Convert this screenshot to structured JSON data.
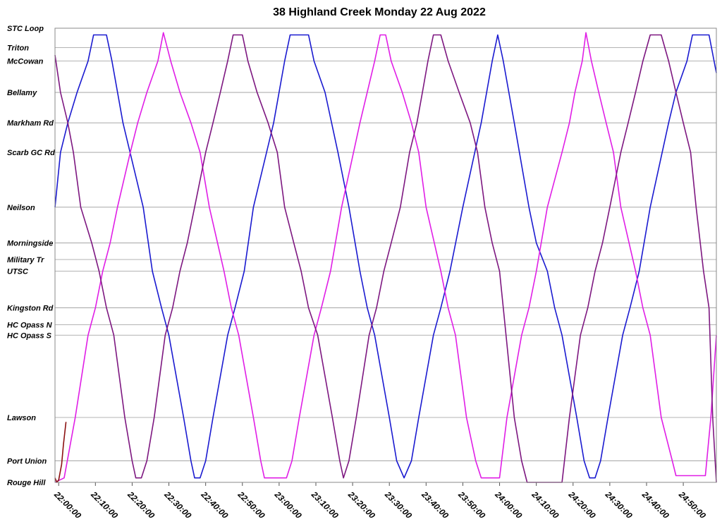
{
  "chart_data": {
    "type": "line",
    "title": "38 Highland Creek Monday 22 Aug 2022",
    "xlabel": "",
    "ylabel": "",
    "x_ticks": [
      "22:00:00",
      "22:10:00",
      "22:20:00",
      "22:30:00",
      "22:40:00",
      "22:50:00",
      "23:00:00",
      "23:10:00",
      "23:20:00",
      "23:30:00",
      "23:40:00",
      "23:50:00",
      "24:00:00",
      "24:10:00",
      "24:20:00",
      "24:30:00",
      "24:40:00",
      "24:50:00"
    ],
    "xlim_minutes": [
      -1,
      179
    ],
    "stops": [
      {
        "name": "STC Loop",
        "pos": 0
      },
      {
        "name": "Triton",
        "pos": 0.87
      },
      {
        "name": "McCowan",
        "pos": 1.47
      },
      {
        "name": "Bellamy",
        "pos": 2.87
      },
      {
        "name": "Markham Rd",
        "pos": 4.23
      },
      {
        "name": "Scarb GC Rd",
        "pos": 5.55
      },
      {
        "name": "Neilson",
        "pos": 8.0
      },
      {
        "name": "Morningside",
        "pos": 9.6
      },
      {
        "name": "Military Tr",
        "pos": 10.34
      },
      {
        "name": "UTSC",
        "pos": 10.86
      },
      {
        "name": "Kingston Rd",
        "pos": 12.5
      },
      {
        "name": "HC Opass N",
        "pos": 13.25
      },
      {
        "name": "HC Opass S",
        "pos": 13.72
      },
      {
        "name": "Lawson",
        "pos": 17.4
      },
      {
        "name": "Port Union",
        "pos": 19.34
      },
      {
        "name": "Rouge Hill",
        "pos": 20.3
      }
    ],
    "ylim": [
      0,
      20.3
    ],
    "grid": true,
    "series": [
      {
        "color": "#1a1ad0",
        "points": [
          [
            -1,
            8
          ],
          [
            0.5,
            5.55
          ],
          [
            2.5,
            4.23
          ],
          [
            5,
            2.87
          ],
          [
            8,
            1.47
          ],
          [
            9.5,
            0.3
          ],
          [
            13,
            0.3
          ],
          [
            14.5,
            1.47
          ],
          [
            17.5,
            4.23
          ],
          [
            23,
            8
          ],
          [
            25.5,
            10.86
          ],
          [
            28,
            12.5
          ],
          [
            30,
            13.72
          ],
          [
            34,
            17.4
          ],
          [
            36,
            19.34
          ],
          [
            37,
            20.1
          ],
          [
            38.5,
            20.1
          ],
          [
            40,
            19.34
          ],
          [
            42,
            17.4
          ],
          [
            46,
            13.72
          ],
          [
            48,
            12.5
          ],
          [
            50.5,
            10.86
          ],
          [
            53,
            8
          ],
          [
            58.5,
            4.23
          ],
          [
            61.5,
            1.47
          ],
          [
            63,
            0.3
          ],
          [
            68,
            0.3
          ],
          [
            69.5,
            1.47
          ],
          [
            72.5,
            2.87
          ],
          [
            76,
            5.55
          ],
          [
            79,
            8
          ],
          [
            82,
            10.86
          ],
          [
            84,
            12.5
          ],
          [
            86,
            13.72
          ],
          [
            90,
            17.4
          ],
          [
            92,
            19.34
          ],
          [
            94,
            20.1
          ],
          [
            96,
            19.34
          ],
          [
            98,
            17.4
          ],
          [
            102,
            13.72
          ],
          [
            104,
            12.5
          ],
          [
            106.5,
            10.86
          ],
          [
            110,
            8
          ],
          [
            115,
            4.23
          ],
          [
            118,
            1.47
          ],
          [
            119.5,
            0.3
          ],
          [
            121,
            1.47
          ],
          [
            124,
            4.23
          ],
          [
            128,
            8
          ],
          [
            130,
            9.6
          ],
          [
            133,
            10.86
          ],
          [
            135,
            12.5
          ],
          [
            137,
            13.72
          ],
          [
            141,
            17.4
          ],
          [
            143,
            19.34
          ],
          [
            144.5,
            20.1
          ],
          [
            146,
            20.1
          ],
          [
            147.5,
            19.34
          ],
          [
            149.5,
            17.4
          ],
          [
            153.5,
            13.72
          ],
          [
            155.5,
            12.5
          ],
          [
            158,
            10.86
          ],
          [
            161,
            8
          ],
          [
            166,
            4.23
          ],
          [
            168,
            2.87
          ],
          [
            171,
            1.47
          ],
          [
            172.5,
            0.3
          ],
          [
            177,
            0.3
          ],
          [
            179,
            2
          ]
        ]
      },
      {
        "color": "#e01ee6",
        "points": [
          [
            -1,
            20.3
          ],
          [
            1.5,
            20.1
          ],
          [
            4.5,
            17.4
          ],
          [
            8,
            13.72
          ],
          [
            10,
            12.5
          ],
          [
            12,
            10.86
          ],
          [
            14,
            9.6
          ],
          [
            16,
            8
          ],
          [
            19.5,
            5.55
          ],
          [
            21.5,
            4.23
          ],
          [
            24,
            2.87
          ],
          [
            27,
            1.47
          ],
          [
            28.5,
            0.2
          ],
          [
            30.5,
            1.47
          ],
          [
            33,
            2.87
          ],
          [
            36,
            4.23
          ],
          [
            38.5,
            5.55
          ],
          [
            41,
            8
          ],
          [
            45,
            10.86
          ],
          [
            47,
            12.5
          ],
          [
            49,
            13.72
          ],
          [
            53,
            17.4
          ],
          [
            55,
            19.34
          ],
          [
            56,
            20.1
          ],
          [
            62,
            20.1
          ],
          [
            63.5,
            19.34
          ],
          [
            65.5,
            17.4
          ],
          [
            69.5,
            13.72
          ],
          [
            71.5,
            12.5
          ],
          [
            74,
            10.86
          ],
          [
            77,
            8
          ],
          [
            82,
            4.23
          ],
          [
            86,
            1.47
          ],
          [
            87.5,
            0.3
          ],
          [
            89,
            0.3
          ],
          [
            90.5,
            1.47
          ],
          [
            93.5,
            2.87
          ],
          [
            96,
            4.23
          ],
          [
            98,
            5.55
          ],
          [
            100,
            8
          ],
          [
            104,
            10.86
          ],
          [
            106,
            12.5
          ],
          [
            108,
            13.72
          ],
          [
            111,
            17.4
          ],
          [
            113.5,
            19.34
          ],
          [
            115,
            20.1
          ],
          [
            120,
            20.1
          ],
          [
            122,
            17.4
          ],
          [
            126,
            13.72
          ],
          [
            128,
            12.5
          ],
          [
            130,
            10.86
          ],
          [
            133,
            8
          ],
          [
            137,
            5.55
          ],
          [
            139,
            4.23
          ],
          [
            140.5,
            2.87
          ],
          [
            142.5,
            1.47
          ],
          [
            143.5,
            0.2
          ],
          [
            145,
            1.47
          ],
          [
            147,
            2.87
          ],
          [
            149,
            4.23
          ],
          [
            151,
            5.55
          ],
          [
            153,
            8
          ],
          [
            157,
            10.86
          ],
          [
            159,
            12.5
          ],
          [
            161,
            13.72
          ],
          [
            164,
            17.4
          ],
          [
            167,
            19.34
          ],
          [
            168,
            20
          ],
          [
            176,
            20
          ],
          [
            177.5,
            17.4
          ],
          [
            179,
            13.72
          ]
        ]
      },
      {
        "color": "#7d1780",
        "points": [
          [
            -1,
            1.2
          ],
          [
            0.5,
            2.87
          ],
          [
            2.5,
            4.23
          ],
          [
            4,
            5.55
          ],
          [
            6,
            8
          ],
          [
            9,
            9.6
          ],
          [
            11,
            10.86
          ],
          [
            13,
            12.5
          ],
          [
            15,
            13.72
          ],
          [
            18,
            17.4
          ],
          [
            20,
            19.34
          ],
          [
            21,
            20.1
          ],
          [
            22.5,
            20.1
          ],
          [
            24,
            19.34
          ],
          [
            26,
            17.4
          ],
          [
            29,
            13.72
          ],
          [
            31,
            12.5
          ],
          [
            33,
            10.86
          ],
          [
            35,
            9.6
          ],
          [
            37,
            8
          ],
          [
            40,
            5.55
          ],
          [
            42,
            4.23
          ],
          [
            44,
            2.87
          ],
          [
            46,
            1.47
          ],
          [
            47.5,
            0.3
          ],
          [
            50,
            0.3
          ],
          [
            51.5,
            1.47
          ],
          [
            54,
            2.87
          ],
          [
            57,
            4.23
          ],
          [
            59.5,
            5.55
          ],
          [
            61.5,
            8
          ],
          [
            64,
            9.6
          ],
          [
            66,
            10.86
          ],
          [
            68,
            12.5
          ],
          [
            70.5,
            13.72
          ],
          [
            74.5,
            17.4
          ],
          [
            76.5,
            19.34
          ],
          [
            77.5,
            20.1
          ],
          [
            79,
            19.34
          ],
          [
            81,
            17.4
          ],
          [
            84.5,
            13.72
          ],
          [
            86.5,
            12.5
          ],
          [
            88.5,
            10.86
          ],
          [
            90.5,
            9.6
          ],
          [
            93,
            8
          ],
          [
            95.5,
            5.55
          ],
          [
            97.5,
            4.23
          ],
          [
            99,
            2.87
          ],
          [
            100.5,
            1.47
          ],
          [
            102,
            0.3
          ],
          [
            104,
            0.3
          ],
          [
            106,
            1.47
          ],
          [
            109,
            2.87
          ],
          [
            112,
            4.23
          ],
          [
            114,
            5.55
          ],
          [
            116,
            8
          ],
          [
            118,
            9.6
          ],
          [
            120,
            10.86
          ],
          [
            121,
            12.5
          ],
          [
            124,
            17.4
          ],
          [
            126,
            19.34
          ],
          [
            127.5,
            20.3
          ],
          [
            137,
            20.3
          ],
          [
            139,
            17.4
          ],
          [
            142,
            13.72
          ],
          [
            144,
            12.5
          ],
          [
            146,
            10.86
          ],
          [
            148,
            9.6
          ],
          [
            150,
            8
          ],
          [
            153,
            5.55
          ],
          [
            155,
            4.23
          ],
          [
            157,
            2.87
          ],
          [
            159,
            1.47
          ],
          [
            161,
            0.3
          ],
          [
            164,
            0.3
          ],
          [
            166,
            1.47
          ],
          [
            168,
            2.87
          ],
          [
            170,
            4.23
          ],
          [
            172,
            5.55
          ],
          [
            173.5,
            8
          ],
          [
            175.5,
            10.86
          ],
          [
            177,
            12.5
          ],
          [
            178,
            17.4
          ],
          [
            179,
            20.3
          ]
        ]
      },
      {
        "color": "#8b1010",
        "points": [
          [
            -1,
            20.1
          ],
          [
            -0.5,
            20.3
          ],
          [
            0,
            20.2
          ],
          [
            0.8,
            19.5
          ],
          [
            1.3,
            18.6
          ],
          [
            2,
            17.6
          ]
        ]
      }
    ]
  }
}
